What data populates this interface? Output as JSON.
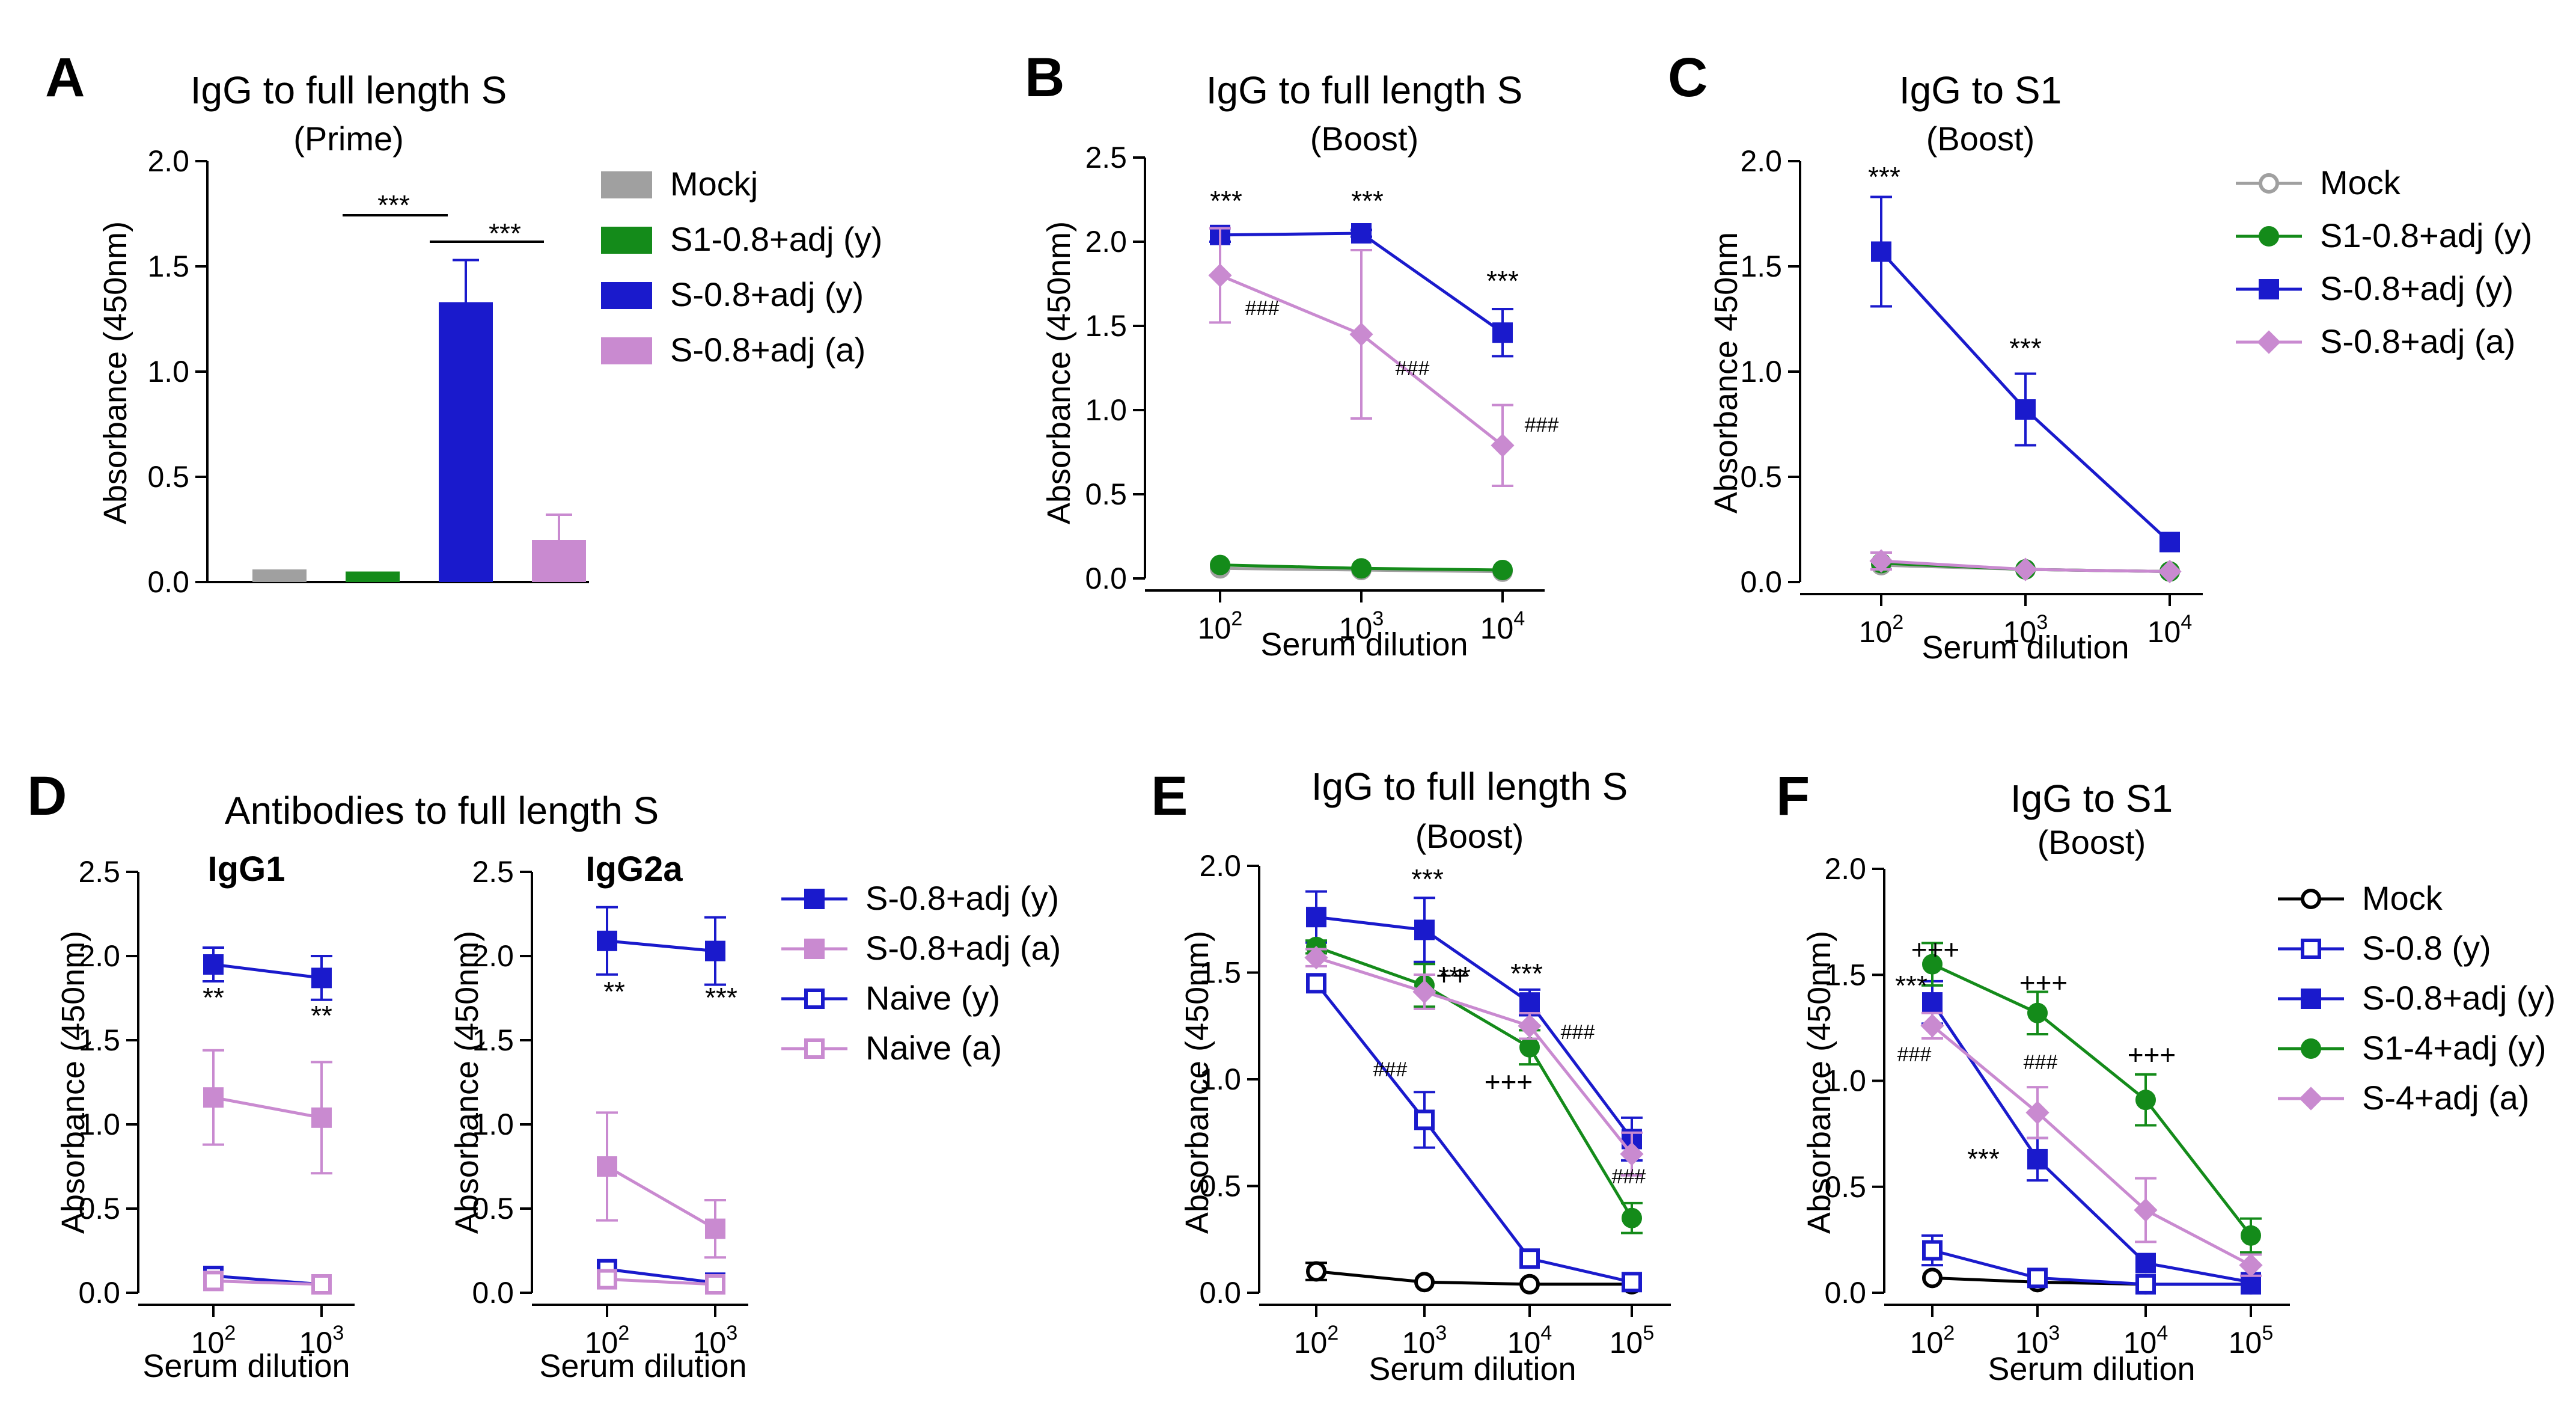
{
  "figure": {
    "super_title": "Antibodies to full length S",
    "legend_bar": [
      "Mockj",
      "S1-0.8+adj (y)",
      "S-0.8+adj (y)",
      "S-0.8+adj (a)"
    ],
    "legend_c": [
      "Mock",
      "S1-0.8+adj (y)",
      "S-0.8+adj (y)",
      "S-0.8+adj (a)"
    ],
    "legend_d": [
      "S-0.8+adj (y)",
      "S-0.8+adj (a)",
      "Naive (y)",
      "Naive (a)"
    ],
    "legend_f": [
      "Mock",
      "S-0.8 (y)",
      "S-0.8+adj (y)",
      "S1-4+adj (y)",
      "S-4+adj (a)"
    ]
  },
  "colors": {
    "gray": "#a0a0a0",
    "green": "#148b1a",
    "blue": "#1a1acc",
    "pink": "#c98ad0",
    "black": "#000000"
  },
  "chart_data": [
    {
      "id": "A",
      "label": "A",
      "type": "bar",
      "title": "IgG to full length S",
      "subtitle": "(Prime)",
      "ylabel": "Absorbance (450nm)",
      "xlabel": "",
      "ylim": [
        0,
        2.0
      ],
      "yticks": [
        "0.0",
        "0.5",
        "1.0",
        "1.5",
        "2.0"
      ],
      "categories": [
        "Mockj",
        "S1-0.8+adj (y)",
        "S-0.8+adj (y)",
        "S-0.8+adj (a)"
      ],
      "values": [
        0.06,
        0.05,
        1.33,
        0.2
      ],
      "errors": [
        0,
        0,
        0.2,
        0.12
      ],
      "colors": [
        "gray",
        "green",
        "blue",
        "pink"
      ],
      "annotations": [
        "***",
        "***"
      ]
    },
    {
      "id": "B",
      "label": "B",
      "type": "line",
      "title": "IgG to full length S",
      "subtitle": "(Boost)",
      "ylabel": "Absorbance (450nm)",
      "xlabel": "Serum dilution",
      "ylim": [
        0,
        2.5
      ],
      "yticks": [
        "0.0",
        "0.5",
        "1.0",
        "1.5",
        "2.0",
        "2.5"
      ],
      "x": [
        2,
        3,
        4
      ],
      "series": [
        {
          "name": "Mock",
          "color": "gray",
          "marker": "circle-open",
          "values": [
            0.06,
            0.05,
            0.04
          ],
          "errors": [
            0,
            0,
            0
          ]
        },
        {
          "name": "S1-0.8+adj (y)",
          "color": "green",
          "marker": "circle",
          "values": [
            0.08,
            0.06,
            0.05
          ],
          "errors": [
            0,
            0,
            0
          ]
        },
        {
          "name": "S-0.8+adj (y)",
          "color": "blue",
          "marker": "square",
          "values": [
            2.04,
            2.05,
            1.46
          ],
          "errors": [
            0.04,
            0.02,
            0.14
          ]
        },
        {
          "name": "S-0.8+adj (a)",
          "color": "pink",
          "marker": "diamond",
          "values": [
            1.8,
            1.45,
            0.79
          ],
          "errors": [
            0.28,
            0.5,
            0.24
          ]
        }
      ],
      "annotations": [
        "***",
        "***",
        "***",
        "###",
        "###",
        "###"
      ]
    },
    {
      "id": "C",
      "label": "C",
      "type": "line",
      "title": "IgG to S1",
      "subtitle": "(Boost)",
      "ylabel": "Absorbance 450nm",
      "xlabel": "Serum dilution",
      "ylim": [
        0,
        2.0
      ],
      "yticks": [
        "0.0",
        "0.5",
        "1.0",
        "1.5",
        "2.0"
      ],
      "x": [
        2,
        3,
        4
      ],
      "series": [
        {
          "name": "Mock",
          "color": "gray",
          "marker": "circle-open",
          "values": [
            0.08,
            0.06,
            0.05
          ],
          "errors": [
            0,
            0,
            0
          ]
        },
        {
          "name": "S1-0.8+adj (y)",
          "color": "green",
          "marker": "circle",
          "values": [
            0.09,
            0.06,
            0.05
          ],
          "errors": [
            0,
            0,
            0
          ]
        },
        {
          "name": "S-0.8+adj (y)",
          "color": "blue",
          "marker": "square",
          "values": [
            1.57,
            0.82,
            0.19
          ],
          "errors": [
            0.26,
            0.17,
            0
          ]
        },
        {
          "name": "S-0.8+adj (a)",
          "color": "pink",
          "marker": "diamond",
          "values": [
            0.1,
            0.06,
            0.05
          ],
          "errors": [
            0.04,
            0,
            0
          ]
        }
      ],
      "annotations": [
        "***",
        "***"
      ]
    },
    {
      "id": "D1",
      "label": "D",
      "type": "line",
      "title": "IgG1",
      "ylabel": "Absorbance (450nm)",
      "xlabel": "Serum dilution",
      "ylim": [
        0,
        2.5
      ],
      "yticks": [
        "0.0",
        "0.5",
        "1.0",
        "1.5",
        "2.0",
        "2.5"
      ],
      "x": [
        2,
        3
      ],
      "series": [
        {
          "name": "S-0.8+adj (y)",
          "color": "blue",
          "marker": "square",
          "values": [
            1.95,
            1.87
          ],
          "errors": [
            0.1,
            0.13
          ]
        },
        {
          "name": "S-0.8+adj (a)",
          "color": "pink",
          "marker": "square",
          "values": [
            1.16,
            1.04
          ],
          "errors": [
            0.28,
            0.33
          ]
        },
        {
          "name": "Naive (y)",
          "color": "blue",
          "marker": "square-open",
          "values": [
            0.1,
            0.05
          ],
          "errors": [
            0,
            0
          ]
        },
        {
          "name": "Naive (a)",
          "color": "pink",
          "marker": "square-open",
          "values": [
            0.07,
            0.05
          ],
          "errors": [
            0,
            0
          ]
        }
      ],
      "annotations": [
        "**",
        "**"
      ]
    },
    {
      "id": "D2",
      "label": "",
      "type": "line",
      "title": "IgG2a",
      "ylabel": "Absorbance (450nm)",
      "xlabel": "Serum dilution",
      "ylim": [
        0,
        2.5
      ],
      "yticks": [
        "0.0",
        "0.5",
        "1.0",
        "1.5",
        "2.0",
        "2.5"
      ],
      "x": [
        2,
        3
      ],
      "series": [
        {
          "name": "S-0.8+adj (y)",
          "color": "blue",
          "marker": "square",
          "values": [
            2.09,
            2.03
          ],
          "errors": [
            0.2,
            0.2
          ]
        },
        {
          "name": "S-0.8+adj (a)",
          "color": "pink",
          "marker": "square",
          "values": [
            0.75,
            0.38
          ],
          "errors": [
            0.32,
            0.17
          ]
        },
        {
          "name": "Naive (y)",
          "color": "blue",
          "marker": "square-open",
          "values": [
            0.14,
            0.06
          ],
          "errors": [
            0,
            0
          ]
        },
        {
          "name": "Naive (a)",
          "color": "pink",
          "marker": "square-open",
          "values": [
            0.08,
            0.05
          ],
          "errors": [
            0,
            0
          ]
        }
      ],
      "annotations": [
        "**",
        "***"
      ]
    },
    {
      "id": "E",
      "label": "E",
      "type": "line",
      "title": "IgG to full length S",
      "subtitle": "(Boost)",
      "ylabel": "Absorbance (450nm)",
      "xlabel": "Serum dilution",
      "ylim": [
        0,
        2.0
      ],
      "yticks": [
        "0.0",
        "0.5",
        "1.0",
        "1.5",
        "2.0"
      ],
      "x": [
        2,
        3,
        4,
        5
      ],
      "series": [
        {
          "name": "Mock",
          "color": "black",
          "marker": "circle-open",
          "values": [
            0.1,
            0.05,
            0.04,
            0.04
          ],
          "errors": [
            0.04,
            0,
            0,
            0
          ]
        },
        {
          "name": "S-0.8 (y)",
          "color": "blue",
          "marker": "square-open",
          "values": [
            1.45,
            0.81,
            0.16,
            0.05
          ],
          "errors": [
            0,
            0.13,
            0,
            0
          ]
        },
        {
          "name": "S-0.8+adj (y)",
          "color": "blue",
          "marker": "square",
          "values": [
            1.76,
            1.7,
            1.36,
            0.72
          ],
          "errors": [
            0.12,
            0.15,
            0.06,
            0.1
          ]
        },
        {
          "name": "S1-4+adj (y)",
          "color": "green",
          "marker": "circle",
          "values": [
            1.62,
            1.44,
            1.15,
            0.35
          ],
          "errors": [
            0.03,
            0.1,
            0.08,
            0.07
          ]
        },
        {
          "name": "S-4+adj (a)",
          "color": "pink",
          "marker": "diamond",
          "values": [
            1.57,
            1.41,
            1.25,
            0.65
          ],
          "errors": [
            0.04,
            0.08,
            0.06,
            0.1
          ]
        }
      ],
      "annotations": [
        "***",
        "***",
        "***",
        "++",
        "###",
        "###",
        "+++",
        "###"
      ]
    },
    {
      "id": "F",
      "label": "F",
      "type": "line",
      "title": "IgG to S1",
      "subtitle": "(Boost)",
      "ylabel": "Absorbance (450nm)",
      "xlabel": "Serum dilution",
      "ylim": [
        0,
        2.0
      ],
      "yticks": [
        "0.0",
        "0.5",
        "1.0",
        "1.5",
        "2.0"
      ],
      "x": [
        2,
        3,
        4,
        5
      ],
      "series": [
        {
          "name": "Mock",
          "color": "black",
          "marker": "circle-open",
          "values": [
            0.07,
            0.05,
            0.04,
            0.04
          ],
          "errors": [
            0,
            0,
            0,
            0
          ]
        },
        {
          "name": "S-0.8 (y)",
          "color": "blue",
          "marker": "square-open",
          "values": [
            0.2,
            0.07,
            0.04,
            0.04
          ],
          "errors": [
            0.07,
            0,
            0,
            0
          ]
        },
        {
          "name": "S-0.8+adj (y)",
          "color": "blue",
          "marker": "square",
          "values": [
            1.37,
            0.63,
            0.14,
            0.05
          ],
          "errors": [
            0.1,
            0.1,
            0,
            0
          ]
        },
        {
          "name": "S1-4+adj (y)",
          "color": "green",
          "marker": "circle",
          "values": [
            1.55,
            1.32,
            0.91,
            0.27
          ],
          "errors": [
            0.1,
            0.1,
            0.12,
            0.08
          ]
        },
        {
          "name": "S-4+adj (a)",
          "color": "pink",
          "marker": "diamond",
          "values": [
            1.26,
            0.85,
            0.39,
            0.13
          ],
          "errors": [
            0.06,
            0.12,
            0.15,
            0.05
          ]
        }
      ],
      "annotations": [
        "***",
        "###",
        "+++",
        "+++",
        "###",
        "***",
        "+++"
      ]
    }
  ]
}
